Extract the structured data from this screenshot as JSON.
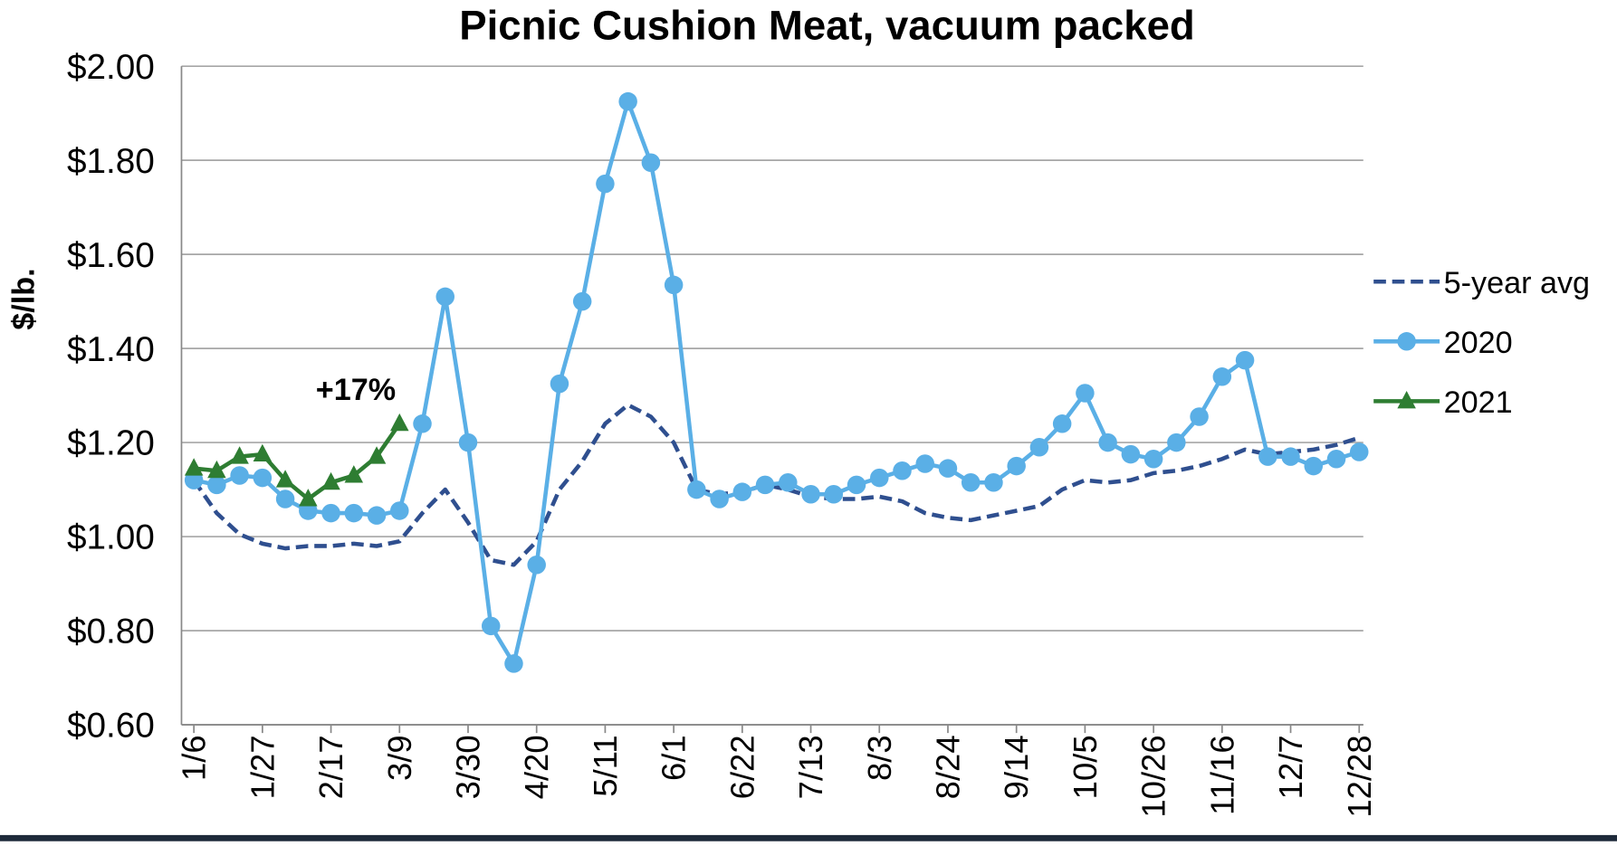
{
  "chart_data": {
    "type": "line",
    "title": "Picnic Cushion Meat, vacuum packed",
    "y_label": "$/lb.",
    "annotation": "+17%",
    "categories": [
      "1/6",
      null,
      null,
      "1/27",
      null,
      null,
      "2/17",
      null,
      null,
      "3/9",
      null,
      null,
      "3/30",
      null,
      null,
      "4/20",
      null,
      null,
      "5/11",
      null,
      null,
      "6/1",
      null,
      null,
      "6/22",
      null,
      null,
      "7/13",
      null,
      null,
      "8/3",
      null,
      null,
      "8/24",
      null,
      null,
      "9/14",
      null,
      null,
      "10/5",
      null,
      null,
      "10/26",
      null,
      null,
      "11/16",
      null,
      null,
      "12/7",
      null,
      null,
      "12/28"
    ],
    "series": [
      {
        "name": "5-year avg",
        "color": "#2f4f8f",
        "dash": true,
        "marker": "none",
        "values": [
          1.12,
          1.05,
          1.005,
          0.985,
          0.975,
          0.98,
          0.98,
          0.985,
          0.98,
          0.99,
          1.05,
          1.1,
          1.03,
          0.95,
          0.94,
          0.99,
          1.1,
          1.16,
          1.24,
          1.28,
          1.255,
          1.2,
          1.1,
          1.09,
          1.095,
          1.11,
          1.1,
          1.085,
          1.08,
          1.08,
          1.085,
          1.075,
          1.05,
          1.04,
          1.035,
          1.045,
          1.055,
          1.065,
          1.1,
          1.12,
          1.115,
          1.12,
          1.135,
          1.14,
          1.15,
          1.165,
          1.185,
          1.175,
          1.18,
          1.185,
          1.195,
          1.21
        ]
      },
      {
        "name": "2020",
        "color": "#5aafe6",
        "marker": "circle",
        "values": [
          1.12,
          1.11,
          1.13,
          1.125,
          1.08,
          1.055,
          1.05,
          1.05,
          1.045,
          1.055,
          1.24,
          1.51,
          1.2,
          0.81,
          0.73,
          0.94,
          1.325,
          1.5,
          1.75,
          1.925,
          1.795,
          1.535,
          1.1,
          1.08,
          1.095,
          1.11,
          1.115,
          1.09,
          1.09,
          1.11,
          1.125,
          1.14,
          1.155,
          1.145,
          1.115,
          1.115,
          1.15,
          1.19,
          1.24,
          1.305,
          1.2,
          1.175,
          1.165,
          1.2,
          1.255,
          1.34,
          1.375,
          1.17,
          1.17,
          1.15,
          1.165,
          1.18
        ]
      },
      {
        "name": "2021",
        "color": "#2e7d32",
        "marker": "triangle",
        "values": [
          1.145,
          1.14,
          1.17,
          1.175,
          1.12,
          1.08,
          1.115,
          1.13,
          1.17,
          1.24,
          null,
          null,
          null,
          null,
          null,
          null,
          null,
          null,
          null,
          null,
          null,
          null,
          null,
          null,
          null,
          null,
          null,
          null,
          null,
          null,
          null,
          null,
          null,
          null,
          null,
          null,
          null,
          null,
          null,
          null,
          null,
          null,
          null,
          null,
          null,
          null,
          null,
          null,
          null,
          null,
          null,
          null
        ]
      }
    ],
    "ylim": [
      0.6,
      2.0
    ],
    "yticks": [
      {
        "value": 0.6,
        "label": "$0.60"
      },
      {
        "value": 0.8,
        "label": "$0.80"
      },
      {
        "value": 1.0,
        "label": "$1.00"
      },
      {
        "value": 1.2,
        "label": "$1.20"
      },
      {
        "value": 1.4,
        "label": "$1.40"
      },
      {
        "value": 1.6,
        "label": "$1.60"
      },
      {
        "value": 1.8,
        "label": "$1.80"
      },
      {
        "value": 2.0,
        "label": "$2.00"
      }
    ],
    "grid": true,
    "legend": "right"
  }
}
